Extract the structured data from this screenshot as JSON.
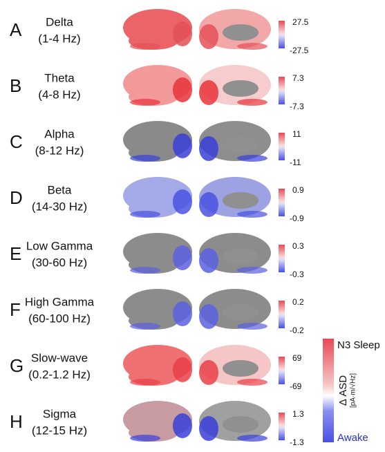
{
  "panels": [
    {
      "letter": "A",
      "band": "Delta",
      "range": "(1-4 Hz)",
      "max": 27.5,
      "min": -27.5
    },
    {
      "letter": "B",
      "band": "Theta",
      "range": "(4-8 Hz)",
      "max": 7.3,
      "min": -7.3
    },
    {
      "letter": "C",
      "band": "Alpha",
      "range": "(8-12 Hz)",
      "max": 11,
      "min": -11
    },
    {
      "letter": "D",
      "band": "Beta",
      "range": "(14-30 Hz)",
      "max": 0.9,
      "min": -0.9
    },
    {
      "letter": "E",
      "band": "Low Gamma",
      "range": "(30-60 Hz)",
      "max": 0.3,
      "min": -0.3
    },
    {
      "letter": "F",
      "band": "High Gamma",
      "range": "(60-100 Hz)",
      "max": 0.2,
      "min": -0.2
    },
    {
      "letter": "G",
      "band": "Slow-wave",
      "range": "(0.2-1.2 Hz)",
      "max": 69,
      "min": -69
    },
    {
      "letter": "H",
      "band": "Sigma",
      "range": "(12-15 Hz)",
      "max": 1.3,
      "min": -1.3
    }
  ],
  "legend": {
    "top": "N3 Sleep",
    "label": "Δ ASD",
    "unit": "[pA·m/√Hz]",
    "bottom": "Awake"
  }
}
